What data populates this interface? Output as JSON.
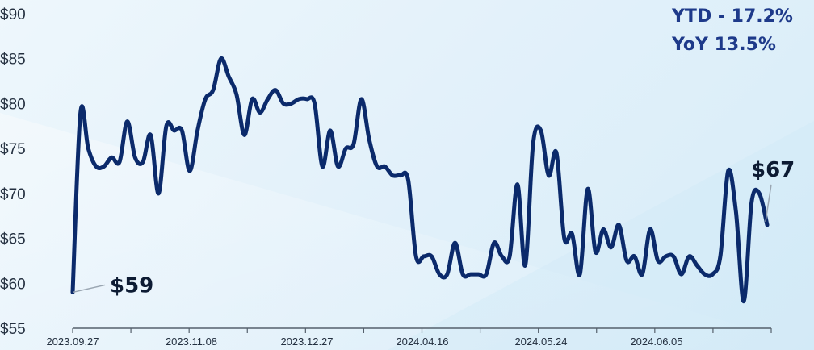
{
  "chart_data": {
    "type": "line",
    "title": "",
    "xlabel": "",
    "ylabel": "",
    "ylim": [
      55,
      90
    ],
    "yticks": [
      55,
      60,
      65,
      70,
      75,
      80,
      85,
      90
    ],
    "ytick_labels": [
      "$55",
      "$60",
      "$65",
      "$70",
      "$75",
      "$80",
      "$85",
      "$90"
    ],
    "xtick_labels": [
      "2023.09.27",
      "2023.11.08",
      "2023.12.27",
      "2024.04.16",
      "2024.05.24",
      "2024.06.05"
    ],
    "grid": false,
    "legend": "none",
    "series": [
      {
        "color": "#0b2a6b",
        "values": [
          59,
          79,
          75,
          73,
          73,
          74,
          73.5,
          78,
          74,
          73.5,
          76.5,
          70,
          77.5,
          77,
          77,
          72.5,
          77,
          80.5,
          81.5,
          85,
          83,
          81,
          76.5,
          80.5,
          79,
          80.5,
          81.5,
          80,
          80,
          80.5,
          80.5,
          80,
          73,
          77,
          73,
          75,
          75.5,
          80.5,
          76,
          73,
          73,
          72,
          72,
          71.5,
          63,
          63,
          63,
          61,
          61,
          64.5,
          61,
          61,
          61,
          61,
          64.5,
          63,
          63,
          71,
          62,
          75.5,
          77,
          72,
          74.5,
          65,
          65.5,
          61,
          70.5,
          63.5,
          66,
          64,
          66.5,
          62.5,
          63,
          61,
          66,
          62.5,
          63,
          63,
          61,
          63,
          62,
          61,
          61,
          63,
          72.5,
          68,
          58,
          69,
          70,
          66.5
        ]
      }
    ]
  },
  "annotations": {
    "start_label": "$59",
    "end_label": "$67"
  },
  "stats": {
    "ytd": "YTD - 17.2%",
    "yoy": "YoY 13.5%"
  }
}
